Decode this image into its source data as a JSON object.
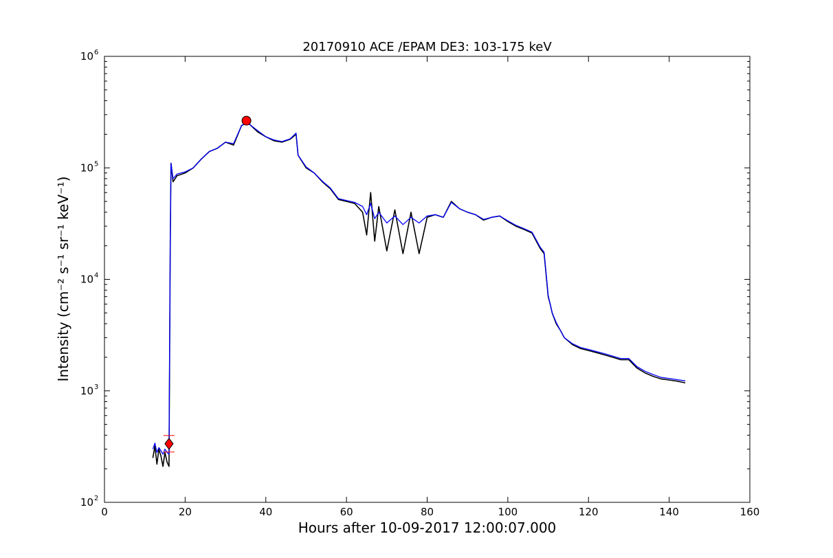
{
  "chart_data": {
    "type": "line",
    "title": "20170910 ACE /EPAM DE3: 103-175 keV",
    "xlabel": "Hours after 10-09-2017 12:00:07.000",
    "ylabel": "Intensity (cm⁻² s⁻¹ sr⁻¹ keV⁻¹)",
    "xlim": [
      0,
      160
    ],
    "ylim": [
      100,
      1000000
    ],
    "yscale": "log",
    "xticks": [
      0,
      20,
      40,
      60,
      80,
      100,
      120,
      140,
      160
    ],
    "xtick_labels": [
      "0",
      "20",
      "40",
      "60",
      "80",
      "100",
      "120",
      "140",
      "160"
    ],
    "yticks": [
      100,
      1000,
      10000,
      100000,
      1000000
    ],
    "ytick_labels": [
      "10",
      "10",
      "10",
      "10",
      "10"
    ],
    "ytick_exponents": [
      "2",
      "3",
      "4",
      "5",
      "6"
    ],
    "grid": false,
    "series": [
      {
        "color": "#000000",
        "x": [
          12.0,
          12.5,
          13.0,
          13.5,
          14.0,
          14.5,
          15.0,
          15.5,
          16.0,
          16.3,
          16.5,
          17,
          18,
          20,
          22,
          24,
          26,
          28,
          30,
          32,
          34,
          35,
          36,
          38,
          40,
          42,
          44,
          46,
          47.5,
          48,
          50,
          52,
          54,
          56,
          58,
          60,
          62,
          64,
          65,
          66,
          67,
          68,
          70,
          72,
          74,
          76,
          78,
          80,
          82,
          84,
          86,
          88,
          90,
          92,
          94,
          96,
          98,
          100,
          102,
          104,
          106,
          108,
          109,
          110,
          110.5,
          111,
          112,
          113,
          114,
          116,
          118,
          120,
          122,
          124,
          126,
          128,
          130,
          132,
          134,
          136,
          138,
          140,
          142,
          144
        ],
        "y": [
          250,
          320,
          220,
          300,
          260,
          210,
          280,
          230,
          210,
          20000,
          110000,
          75000,
          85000,
          90000,
          100000,
          120000,
          140000,
          150000,
          170000,
          160000,
          240000,
          250000,
          245000,
          210000,
          190000,
          175000,
          170000,
          180000,
          200000,
          130000,
          100000,
          90000,
          75000,
          65000,
          52000,
          50000,
          48000,
          40000,
          25000,
          60000,
          22000,
          45000,
          18000,
          42000,
          17000,
          40000,
          17000,
          36000,
          38000,
          36000,
          50000,
          43000,
          40000,
          38000,
          34000,
          36000,
          37000,
          33000,
          30000,
          28000,
          26000,
          19000,
          17000,
          7000,
          6000,
          5000,
          4000,
          3500,
          3000,
          2600,
          2400,
          2300,
          2200,
          2100,
          2000,
          1900,
          1900,
          1600,
          1450,
          1350,
          1280,
          1250,
          1220,
          1180
        ]
      },
      {
        "color": "#0000ff",
        "x": [
          12.0,
          12.5,
          13.0,
          13.5,
          14.0,
          14.5,
          15.0,
          15.5,
          16.0,
          16.3,
          16.5,
          17,
          18,
          20,
          22,
          24,
          26,
          28,
          30,
          32,
          34,
          35,
          36,
          38,
          40,
          42,
          44,
          46,
          47.5,
          48,
          50,
          52,
          54,
          56,
          58,
          60,
          62,
          64,
          65,
          66,
          67,
          68,
          70,
          72,
          74,
          76,
          78,
          80,
          82,
          84,
          86,
          88,
          90,
          92,
          94,
          96,
          98,
          100,
          102,
          104,
          106,
          108,
          109,
          110,
          110.5,
          111,
          112,
          113,
          114,
          116,
          118,
          120,
          122,
          124,
          126,
          128,
          130,
          132,
          134,
          136,
          138,
          140,
          142,
          144
        ],
        "y": [
          300,
          340,
          280,
          310,
          290,
          270,
          300,
          280,
          270,
          20000,
          110000,
          80000,
          88000,
          92000,
          100000,
          120000,
          140000,
          150000,
          170000,
          165000,
          240000,
          250000,
          245000,
          215000,
          190000,
          178000,
          172000,
          182000,
          205000,
          130000,
          102000,
          90000,
          76000,
          66000,
          53000,
          51000,
          49000,
          45000,
          38000,
          48000,
          35000,
          40000,
          32000,
          37000,
          31000,
          36000,
          32000,
          37000,
          38000,
          36000,
          49000,
          43000,
          40000,
          38000,
          34500,
          36000,
          37000,
          33500,
          30500,
          28500,
          26500,
          19500,
          17500,
          7200,
          6000,
          5000,
          4100,
          3500,
          3000,
          2650,
          2450,
          2350,
          2250,
          2150,
          2050,
          1950,
          1950,
          1650,
          1500,
          1400,
          1320,
          1290,
          1260,
          1230
        ]
      }
    ],
    "markers": [
      {
        "x": 35.2,
        "y": 265000,
        "shape": "circle",
        "color": "#ff0000"
      },
      {
        "x": 16.0,
        "y": 335,
        "shape": "diamond",
        "color": "#ff0000"
      },
      {
        "x": 16.0,
        "y": 335,
        "shape": "cross",
        "color": "#ff0000"
      }
    ]
  }
}
